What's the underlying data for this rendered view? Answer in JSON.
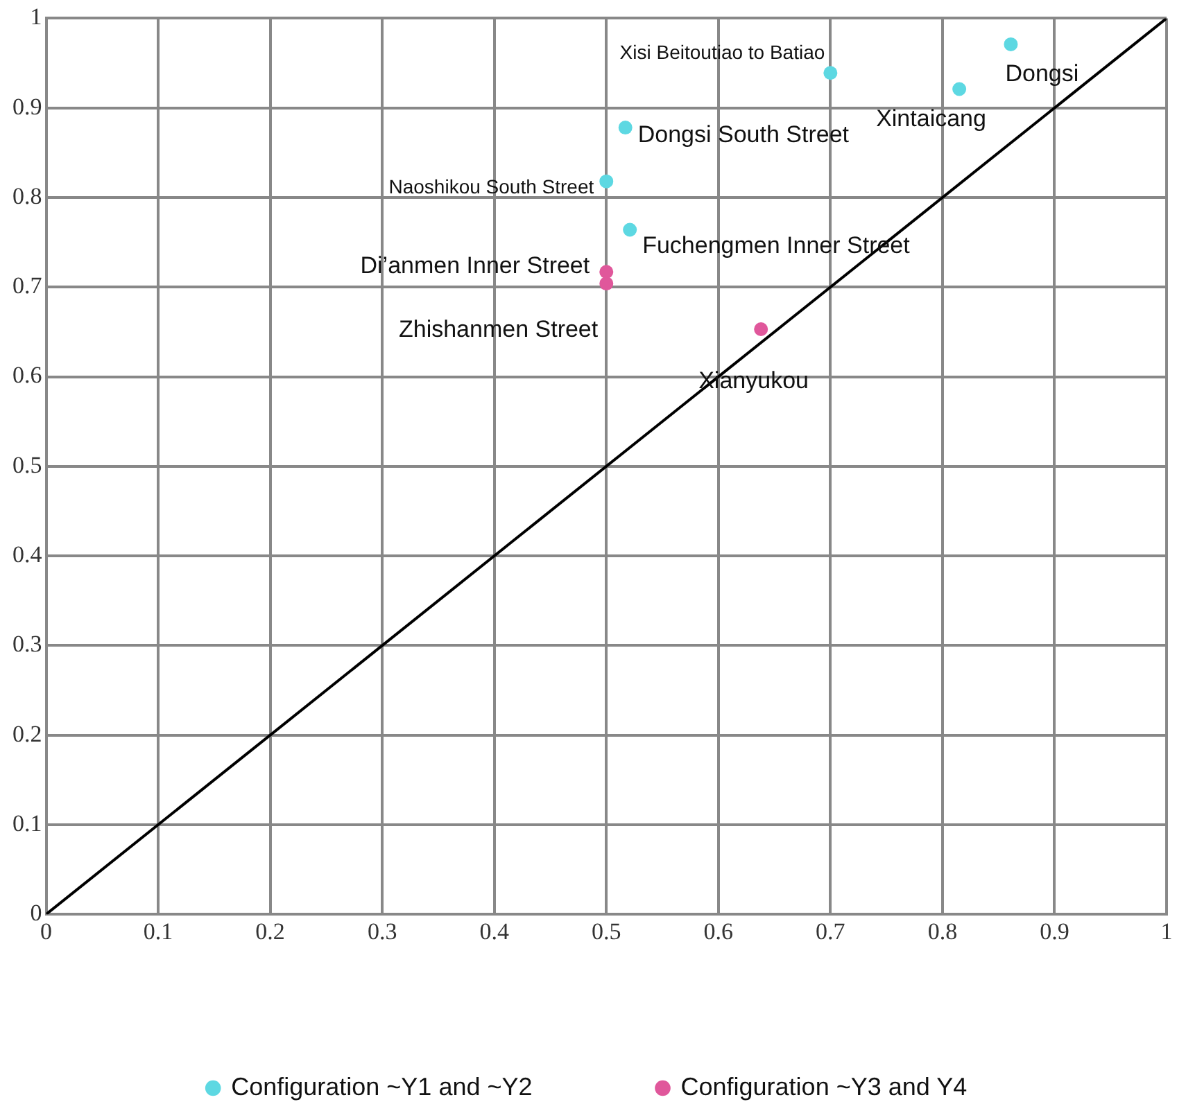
{
  "chart_data": {
    "type": "scatter",
    "xlim": [
      0,
      1
    ],
    "ylim": [
      0,
      1
    ],
    "xticks": [
      0,
      0.1,
      0.2,
      0.3,
      0.4,
      0.5,
      0.6,
      0.7,
      0.8,
      0.9,
      1
    ],
    "yticks": [
      0,
      0.1,
      0.2,
      0.3,
      0.4,
      0.5,
      0.6,
      0.7,
      0.8,
      0.9,
      1
    ],
    "grid": true,
    "legend": "bottom",
    "marker": "circle",
    "series": [
      {
        "name": "Configuration ~Y1 and ~Y2",
        "color": "#5dd8e2",
        "x": [
          0.861,
          0.7,
          0.815,
          0.517,
          0.5,
          0.521
        ],
        "values": [
          0.971,
          0.939,
          0.921,
          0.878,
          0.818,
          0.764
        ]
      },
      {
        "name": "Configuration ~Y3 and Y4",
        "color": "#e0579b",
        "x": [
          0.5,
          0.5,
          0.638
        ],
        "values": [
          0.717,
          0.704,
          0.653
        ]
      },
      {
        "type": "line",
        "color": "#000000",
        "marker": "none",
        "line_style": "solid",
        "x": [
          0,
          1
        ],
        "values": [
          0,
          1
        ]
      }
    ],
    "annotations": [
      {
        "text": "Dongsi",
        "x": 0.861,
        "y": 0.971
      },
      {
        "text": "Xisi Beitoutiao to Batiao",
        "x": 0.7,
        "y": 0.939
      },
      {
        "text": "Xintaicang",
        "x": 0.815,
        "y": 0.921
      },
      {
        "text": "Dongsi South Street",
        "x": 0.517,
        "y": 0.878
      },
      {
        "text": "Naoshikou South Street",
        "x": 0.5,
        "y": 0.818
      },
      {
        "text": "Fuchengmen Inner Street",
        "x": 0.521,
        "y": 0.764
      },
      {
        "text": "Di’anmen Inner Street",
        "x": 0.5,
        "y": 0.717
      },
      {
        "text": "Zhishanmen Street",
        "x": 0.5,
        "y": 0.704
      },
      {
        "text": "Xianyukou",
        "x": 0.638,
        "y": 0.653
      }
    ]
  }
}
